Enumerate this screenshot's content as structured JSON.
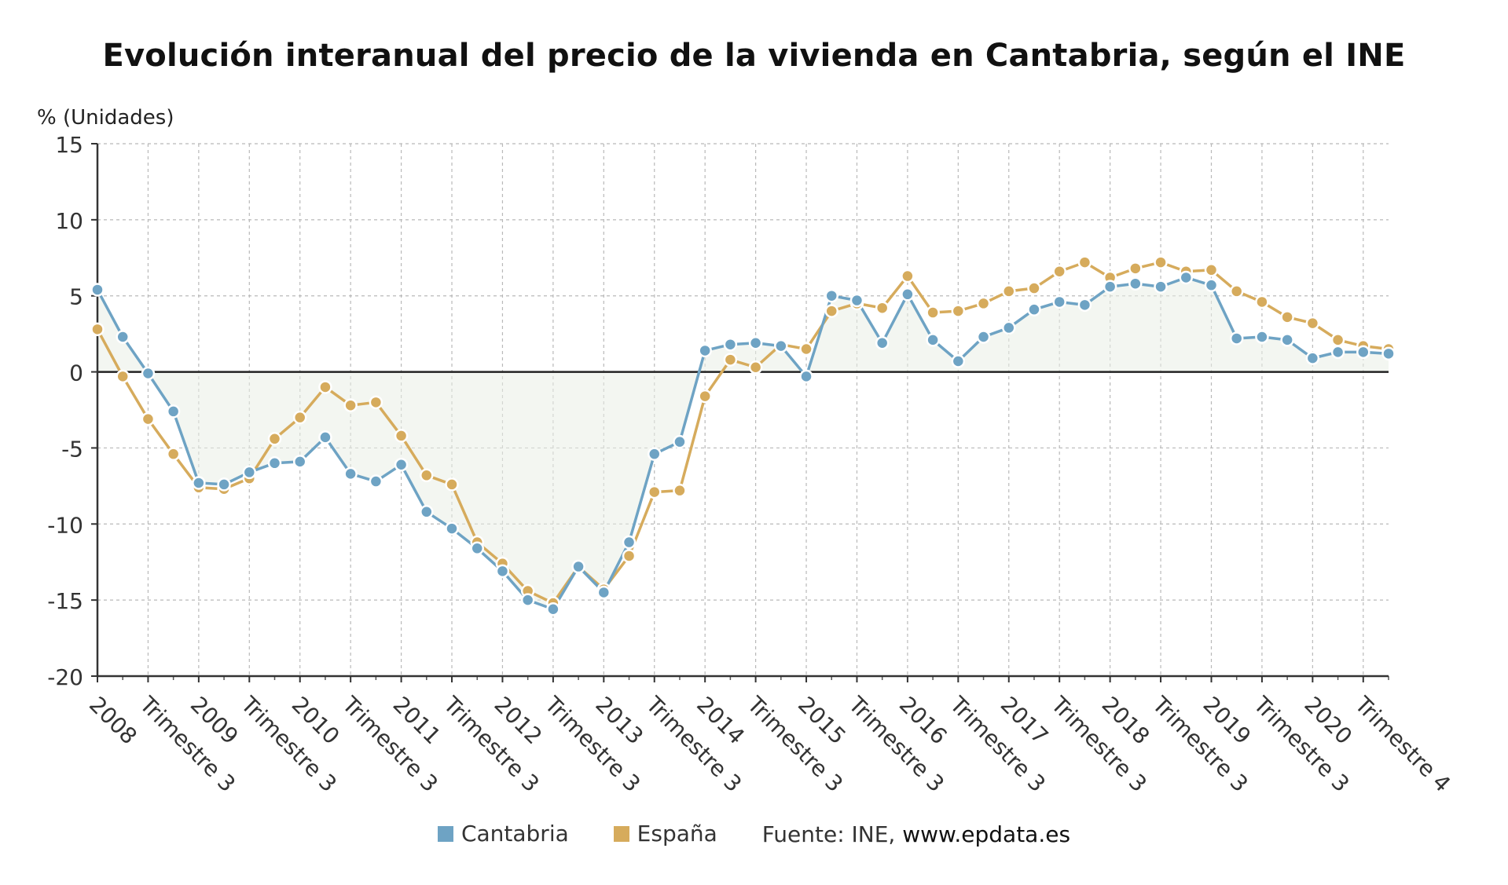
{
  "chart_data": {
    "type": "line",
    "title": "Evolución interanual del precio de la vivienda en Cantabria, según el INE",
    "ylabel": "% (Unidades)",
    "ylim": [
      -20,
      15
    ],
    "yticks": [
      15,
      10,
      5,
      0,
      -5,
      -10,
      -15,
      -20
    ],
    "grid": true,
    "legend_position": "bottom",
    "x_tick_labels": [
      "2008",
      "Trimestre 3",
      "2009",
      "Trimestre 3",
      "2010",
      "Trimestre 3",
      "2011",
      "Trimestre 3",
      "2012",
      "Trimestre 3",
      "2013",
      "Trimestre 3",
      "2014",
      "Trimestre 3",
      "2015",
      "Trimestre 3",
      "2016",
      "Trimestre 3",
      "2017",
      "Trimestre 3",
      "2018",
      "Trimestre 3",
      "2019",
      "Trimestre 3",
      "2020",
      "Trimestre 4"
    ],
    "series": [
      {
        "name": "Cantabria",
        "color": "#6ea3c4",
        "values": [
          5.4,
          2.3,
          -0.1,
          -2.6,
          -7.3,
          -7.4,
          -6.6,
          -6.0,
          -5.9,
          -4.3,
          -6.7,
          -7.2,
          -6.1,
          -9.2,
          -10.3,
          -11.6,
          -13.1,
          -15.0,
          -15.6,
          -12.8,
          -14.5,
          -11.2,
          -5.4,
          -4.6,
          1.4,
          1.8,
          1.9,
          1.7,
          -0.3,
          5.0,
          4.7,
          1.9,
          5.1,
          2.1,
          0.7,
          2.3,
          2.9,
          4.1,
          4.6,
          4.4,
          5.6,
          5.8,
          5.6,
          6.2,
          5.7,
          2.2,
          2.3,
          2.1,
          0.9,
          1.3,
          1.3,
          1.2
        ],
        "fill": true
      },
      {
        "name": "España",
        "color": "#d6ab5c",
        "values": [
          2.8,
          -0.3,
          -3.1,
          -5.4,
          -7.6,
          -7.7,
          -7.0,
          -4.4,
          -3.0,
          -1.0,
          -2.2,
          -2.0,
          -4.2,
          -6.8,
          -7.4,
          -11.2,
          -12.6,
          -14.4,
          -15.2,
          -12.8,
          -14.3,
          -12.1,
          -7.9,
          -7.8,
          -1.6,
          0.8,
          0.3,
          1.8,
          1.5,
          4.0,
          4.5,
          4.2,
          6.3,
          3.9,
          4.0,
          4.5,
          5.3,
          5.5,
          6.6,
          7.2,
          6.2,
          6.8,
          7.2,
          6.6,
          6.7,
          5.3,
          4.6,
          3.6,
          3.2,
          2.1,
          1.7,
          1.5
        ]
      }
    ],
    "legend": [
      {
        "label": "Cantabria",
        "color": "#6ea3c4"
      },
      {
        "label": "España",
        "color": "#d6ab5c"
      }
    ]
  },
  "source": {
    "prefix": "Fuente: INE, ",
    "site": "www.epdata.es"
  }
}
